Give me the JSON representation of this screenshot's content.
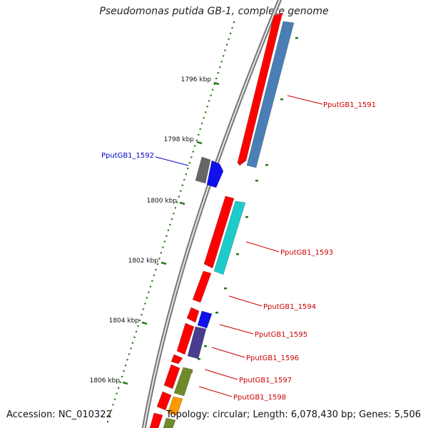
{
  "title": "Pseudomonas putida GB-1, complete genome",
  "footer": {
    "accession": "Accession: NC_010322",
    "topology": "Topology: circular; Length: 6,078,430 bp; Genes: 5,506"
  },
  "ruler": {
    "tick_labels": [
      "1796 kbp",
      "1798 kbp",
      "1800 kbp",
      "1802 kbp",
      "1804 kbp",
      "1806 kbp"
    ]
  },
  "gene_labels": [
    {
      "id": "PputGB1_1591",
      "color": "#cc0000"
    },
    {
      "id": "PputGB1_1592",
      "color": "#0000cc"
    },
    {
      "id": "PputGB1_1593",
      "color": "#cc0000"
    },
    {
      "id": "PputGB1_1594",
      "color": "#cc0000"
    },
    {
      "id": "PputGB1_1595",
      "color": "#cc0000"
    },
    {
      "id": "PputGB1_1596",
      "color": "#cc0000"
    },
    {
      "id": "PputGB1_1597",
      "color": "#cc0000"
    },
    {
      "id": "PputGB1_1598",
      "color": "#cc0000"
    }
  ],
  "colors": {
    "backbone": "#8a8a8a",
    "orf": "#ff0000",
    "cog_blue": "#4a7fb5",
    "cog_cyan": "#1ecbcb",
    "cog_royal": "#1010ee",
    "cog_purple": "#4a3d8f",
    "cog_olive": "#6f8a2a",
    "cog_orange": "#ff9900",
    "cog_gray": "#666666",
    "ruler_dot": "#2a7a1a"
  }
}
